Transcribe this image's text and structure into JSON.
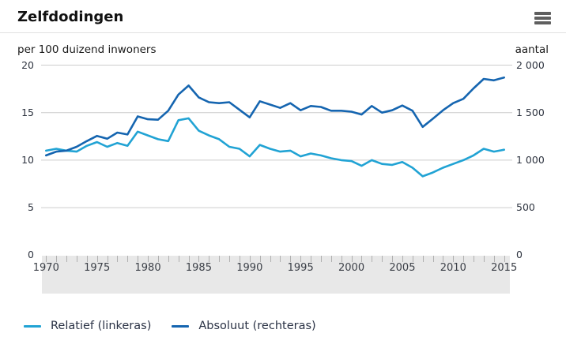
{
  "header": {
    "title": "Zelfdodingen"
  },
  "menu": {
    "icon": "hamburger-menu-icon"
  },
  "axes": {
    "left_title": "per 100 duizend inwoners",
    "right_title": "aantal",
    "left_tick_labels": [
      "20",
      "15",
      "10",
      "5",
      "0"
    ],
    "right_tick_labels": [
      "2 000",
      "1 500",
      "1 000",
      "500",
      "0"
    ],
    "x_tick_labels": [
      "1970",
      "1975",
      "1980",
      "1985",
      "1990",
      "1995",
      "2000",
      "2005",
      "2010",
      "2015"
    ]
  },
  "legend": {
    "items": [
      {
        "label": "Relatief (linkeras)",
        "color": "#21a3d4"
      },
      {
        "label": "Absoluut (rechteras)",
        "color": "#1565b0"
      }
    ]
  },
  "colors": {
    "relative_line": "#21a3d4",
    "absolute_line": "#1565b0",
    "gridline": "#cccccc",
    "band_background": "#e8e8e8",
    "band_tick": "#b0b0b0",
    "header_divider": "#e2e2e2",
    "menu_icon": "#5f5f5f",
    "text": "#1a1a1a"
  },
  "chart_data": {
    "type": "line",
    "title": "Zelfdodingen",
    "x": [
      1970,
      1971,
      1972,
      1973,
      1974,
      1975,
      1976,
      1977,
      1978,
      1979,
      1980,
      1981,
      1982,
      1983,
      1984,
      1985,
      1986,
      1987,
      1988,
      1989,
      1990,
      1991,
      1992,
      1993,
      1994,
      1995,
      1996,
      1997,
      1998,
      1999,
      2000,
      2001,
      2002,
      2003,
      2004,
      2005,
      2006,
      2007,
      2008,
      2009,
      2010,
      2011,
      2012,
      2013,
      2014,
      2015
    ],
    "series": [
      {
        "name": "Relatief (linkeras)",
        "axis": "left",
        "color": "#21a3d4",
        "values": [
          11.0,
          11.2,
          11.0,
          10.9,
          11.5,
          11.9,
          11.4,
          11.8,
          11.5,
          13.0,
          12.6,
          12.2,
          12.0,
          14.2,
          14.4,
          13.1,
          12.6,
          12.2,
          11.4,
          11.2,
          10.4,
          11.6,
          11.2,
          10.9,
          11.0,
          10.4,
          10.7,
          10.5,
          10.2,
          10.0,
          9.9,
          9.4,
          10.0,
          9.6,
          9.5,
          9.8,
          9.2,
          8.3,
          8.7,
          9.2,
          9.6,
          10.0,
          10.5,
          11.2,
          10.9,
          11.1
        ]
      },
      {
        "name": "Absoluut (rechteras)",
        "axis": "right",
        "color": "#1565b0",
        "values": [
          1050,
          1090,
          1100,
          1140,
          1200,
          1255,
          1225,
          1290,
          1270,
          1460,
          1430,
          1425,
          1520,
          1690,
          1785,
          1660,
          1610,
          1600,
          1610,
          1530,
          1450,
          1620,
          1585,
          1550,
          1600,
          1525,
          1570,
          1560,
          1520,
          1520,
          1510,
          1480,
          1570,
          1500,
          1525,
          1575,
          1520,
          1350,
          1435,
          1525,
          1600,
          1645,
          1755,
          1855,
          1840,
          1870
        ]
      }
    ],
    "left_axis": {
      "title": "per 100 duizend inwoners",
      "min": 0,
      "max": 20,
      "tick_interval": 5
    },
    "right_axis": {
      "title": "aantal",
      "min": 0,
      "max": 2000,
      "tick_interval": 500
    },
    "x_axis": {
      "min": 1970,
      "max": 2015,
      "labeled_ticks": [
        1970,
        1975,
        1980,
        1985,
        1990,
        1995,
        2000,
        2005,
        2010,
        2015
      ]
    },
    "grid": true,
    "legend_position": "bottom-left"
  }
}
